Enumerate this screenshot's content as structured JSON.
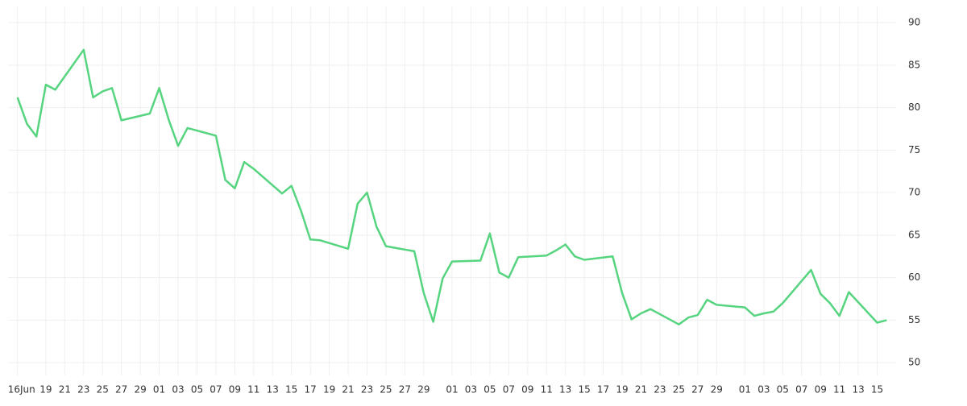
{
  "chart_data": {
    "type": "line",
    "x": [
      "06-16",
      "06-17",
      "06-18",
      "06-19",
      "06-20",
      "06-23",
      "06-24",
      "06-25",
      "06-26",
      "06-27",
      "06-30",
      "07-01",
      "07-02",
      "07-03",
      "07-04",
      "07-07",
      "07-08",
      "07-09",
      "07-10",
      "07-11",
      "07-14",
      "07-15",
      "07-16",
      "07-17",
      "07-18",
      "07-21",
      "07-22",
      "07-23",
      "07-24",
      "07-25",
      "07-28",
      "07-29",
      "07-30",
      "07-31",
      "08-01",
      "08-04",
      "08-05",
      "08-06",
      "08-07",
      "08-08",
      "08-11",
      "08-12",
      "08-13",
      "08-14",
      "08-15",
      "08-18",
      "08-19",
      "08-20",
      "08-21",
      "08-22",
      "08-25",
      "08-26",
      "08-27",
      "08-28",
      "08-29",
      "09-01",
      "09-02",
      "09-03",
      "09-04",
      "09-05",
      "09-08",
      "09-09",
      "09-10",
      "09-11",
      "09-12",
      "09-15",
      "09-16"
    ],
    "series": [
      {
        "color": "#56d47f",
        "values": [
          81.2,
          78.1,
          76.6,
          82.7,
          82.1,
          86.8,
          81.2,
          81.9,
          82.3,
          78.5,
          79.3,
          82.3,
          78.6,
          75.5,
          77.6,
          76.7,
          71.5,
          70.5,
          73.6,
          72.8,
          69.9,
          70.8,
          67.9,
          64.5,
          64.4,
          63.4,
          68.7,
          70.0,
          66.0,
          63.7,
          63.1,
          58.2,
          54.8,
          59.9,
          61.9,
          62.0,
          65.2,
          60.6,
          60.0,
          62.4,
          62.6,
          63.2,
          63.9,
          62.5,
          62.1,
          62.5,
          58.2,
          55.1,
          55.8,
          56.3,
          54.5,
          55.3,
          55.6,
          57.4,
          56.8,
          56.5,
          55.5,
          55.8,
          56.0,
          57.0,
          60.9,
          58.1,
          57.0,
          55.5,
          58.3,
          54.7,
          55.0
        ]
      }
    ],
    "xlim": [
      "06-15",
      "09-17"
    ],
    "xticks": [
      {
        "value": "06-16",
        "label": "16Jun"
      },
      {
        "value": "06-19",
        "label": "19"
      },
      {
        "value": "06-21",
        "label": "21"
      },
      {
        "value": "06-23",
        "label": "23"
      },
      {
        "value": "06-25",
        "label": "25"
      },
      {
        "value": "06-27",
        "label": "27"
      },
      {
        "value": "06-29",
        "label": "29"
      },
      {
        "value": "07-01",
        "label": "01"
      },
      {
        "value": "07-03",
        "label": "03"
      },
      {
        "value": "07-05",
        "label": "05"
      },
      {
        "value": "07-07",
        "label": "07"
      },
      {
        "value": "07-09",
        "label": "09"
      },
      {
        "value": "07-11",
        "label": "11"
      },
      {
        "value": "07-13",
        "label": "13"
      },
      {
        "value": "07-15",
        "label": "15"
      },
      {
        "value": "07-17",
        "label": "17"
      },
      {
        "value": "07-19",
        "label": "19"
      },
      {
        "value": "07-21",
        "label": "21"
      },
      {
        "value": "07-23",
        "label": "23"
      },
      {
        "value": "07-25",
        "label": "25"
      },
      {
        "value": "07-27",
        "label": "27"
      },
      {
        "value": "07-29",
        "label": "29"
      },
      {
        "value": "08-01",
        "label": "01"
      },
      {
        "value": "08-03",
        "label": "03"
      },
      {
        "value": "08-05",
        "label": "05"
      },
      {
        "value": "08-07",
        "label": "07"
      },
      {
        "value": "08-09",
        "label": "09"
      },
      {
        "value": "08-11",
        "label": "11"
      },
      {
        "value": "08-13",
        "label": "13"
      },
      {
        "value": "08-15",
        "label": "15"
      },
      {
        "value": "08-17",
        "label": "17"
      },
      {
        "value": "08-19",
        "label": "19"
      },
      {
        "value": "08-21",
        "label": "21"
      },
      {
        "value": "08-23",
        "label": "23"
      },
      {
        "value": "08-25",
        "label": "25"
      },
      {
        "value": "08-27",
        "label": "27"
      },
      {
        "value": "08-29",
        "label": "29"
      },
      {
        "value": "09-01",
        "label": "01"
      },
      {
        "value": "09-03",
        "label": "03"
      },
      {
        "value": "09-05",
        "label": "05"
      },
      {
        "value": "09-07",
        "label": "07"
      },
      {
        "value": "09-09",
        "label": "09"
      },
      {
        "value": "09-11",
        "label": "11"
      },
      {
        "value": "09-13",
        "label": "13"
      },
      {
        "value": "09-15",
        "label": "15"
      }
    ],
    "ylim": [
      48.5,
      91.9
    ],
    "yticks": [
      50,
      55,
      60,
      65,
      70,
      75,
      80,
      85,
      90
    ],
    "grid": true
  }
}
